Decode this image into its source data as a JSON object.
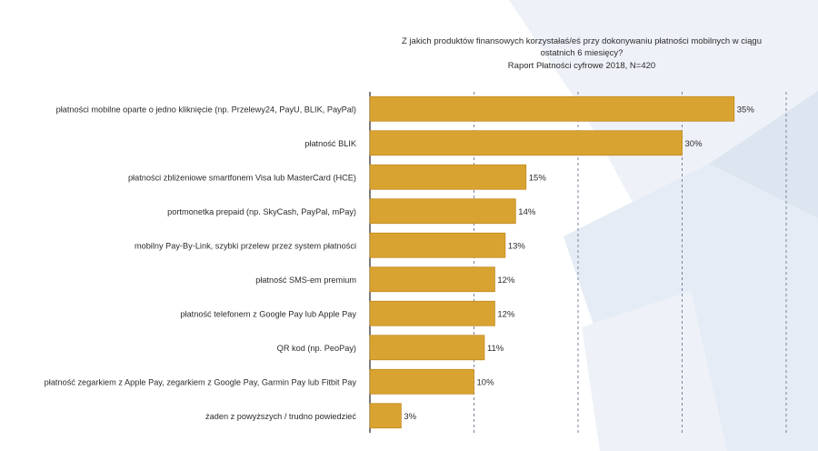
{
  "chart_data": {
    "type": "bar",
    "orientation": "horizontal",
    "title": "Z jakich produktów finansowych korzystałaś/eś przy dokonywaniu płatności mobilnych w ciągu ostatnich 6 miesięcy?",
    "title_lines": [
      "Z jakich produktów finansowych korzystałaś/eś przy dokonywaniu płatności mobilnych w ciągu",
      "ostatnich 6 miesięcy?"
    ],
    "subtitle": "Raport Płatności cyfrowe 2018, N=420",
    "categories": [
      "płatności mobilne oparte o jedno kliknięcie (np. Przelewy24, PayU, BLIK, PayPal)",
      "płatność BLIK",
      "płatności zbliżeniowe smartfonem Visa lub MasterCard (HCE)",
      "portmonetka prepaid (np. SkyCash, PayPal, mPay)",
      "mobilny Pay-By-Link, szybki przelew przez system płatności",
      "płatność SMS-em premium",
      "płatność telefonem z Google Pay lub Apple Pay",
      "QR kod (np. PeoPay)",
      "płatność zegarkiem z Apple Pay, zegarkiem z Google Pay, Garmin Pay lub Fitbit Pay",
      "żaden z powyższych / trudno powiedzieć"
    ],
    "values": [
      35,
      30,
      15,
      14,
      13,
      12,
      12,
      11,
      10,
      3
    ],
    "value_labels": [
      "35%",
      "30%",
      "15%",
      "14%",
      "13%",
      "12%",
      "12%",
      "11%",
      "10%",
      "3%"
    ],
    "unit": "%",
    "xlim": [
      0,
      40
    ],
    "gridlines": [
      10,
      20,
      30,
      40
    ],
    "bar_color": "#D9A331",
    "bar_edge_color": "#C28A1E",
    "text_color": "#2b2b2b",
    "grid_color": "#7a8399"
  }
}
